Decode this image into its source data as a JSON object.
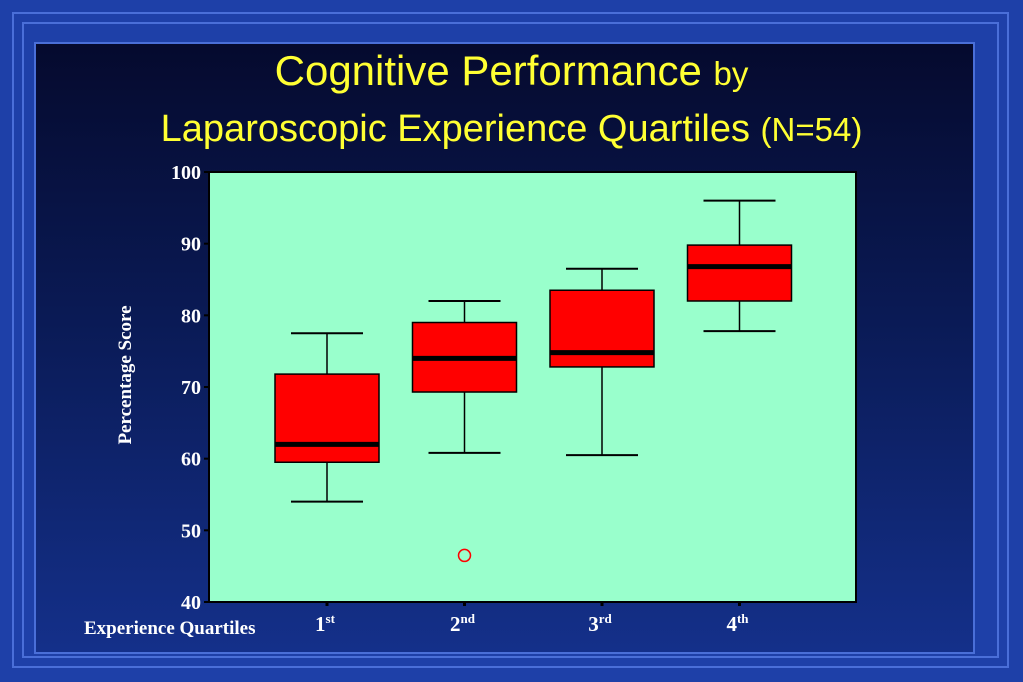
{
  "title": {
    "line1_main": "Cognitive Performance",
    "line1_small": "by",
    "line2_main": "Laparoscopic Experience Quartiles",
    "line2_small": "(N=54)"
  },
  "colors": {
    "plot_background": "#99ffcc",
    "box_fill": "#ff0000",
    "title_text": "#ffff33",
    "outlier": "#ff0000"
  },
  "chart_data": {
    "type": "boxplot",
    "ylabel": "Percentage Score",
    "xlabel": "Experience Quartiles",
    "ylim": [
      40,
      100
    ],
    "yticks": [
      40,
      50,
      60,
      70,
      80,
      90,
      100
    ],
    "categories": [
      {
        "base": "1",
        "sup": "st"
      },
      {
        "base": "2",
        "sup": "nd"
      },
      {
        "base": "3",
        "sup": "rd"
      },
      {
        "base": "4",
        "sup": "th"
      }
    ],
    "boxes": [
      {
        "whisker_low": 54,
        "q1": 59.5,
        "median": 62,
        "q3": 71.8,
        "whisker_high": 77.5
      },
      {
        "whisker_low": 60.8,
        "q1": 69.3,
        "median": 74,
        "q3": 79,
        "whisker_high": 82,
        "outliers": [
          46.5
        ]
      },
      {
        "whisker_low": 60.5,
        "q1": 72.8,
        "median": 74.8,
        "q3": 83.5,
        "whisker_high": 86.5
      },
      {
        "whisker_low": 77.8,
        "q1": 82,
        "median": 86.8,
        "q3": 89.8,
        "whisker_high": 96
      }
    ],
    "grid": false,
    "legend": "none"
  }
}
